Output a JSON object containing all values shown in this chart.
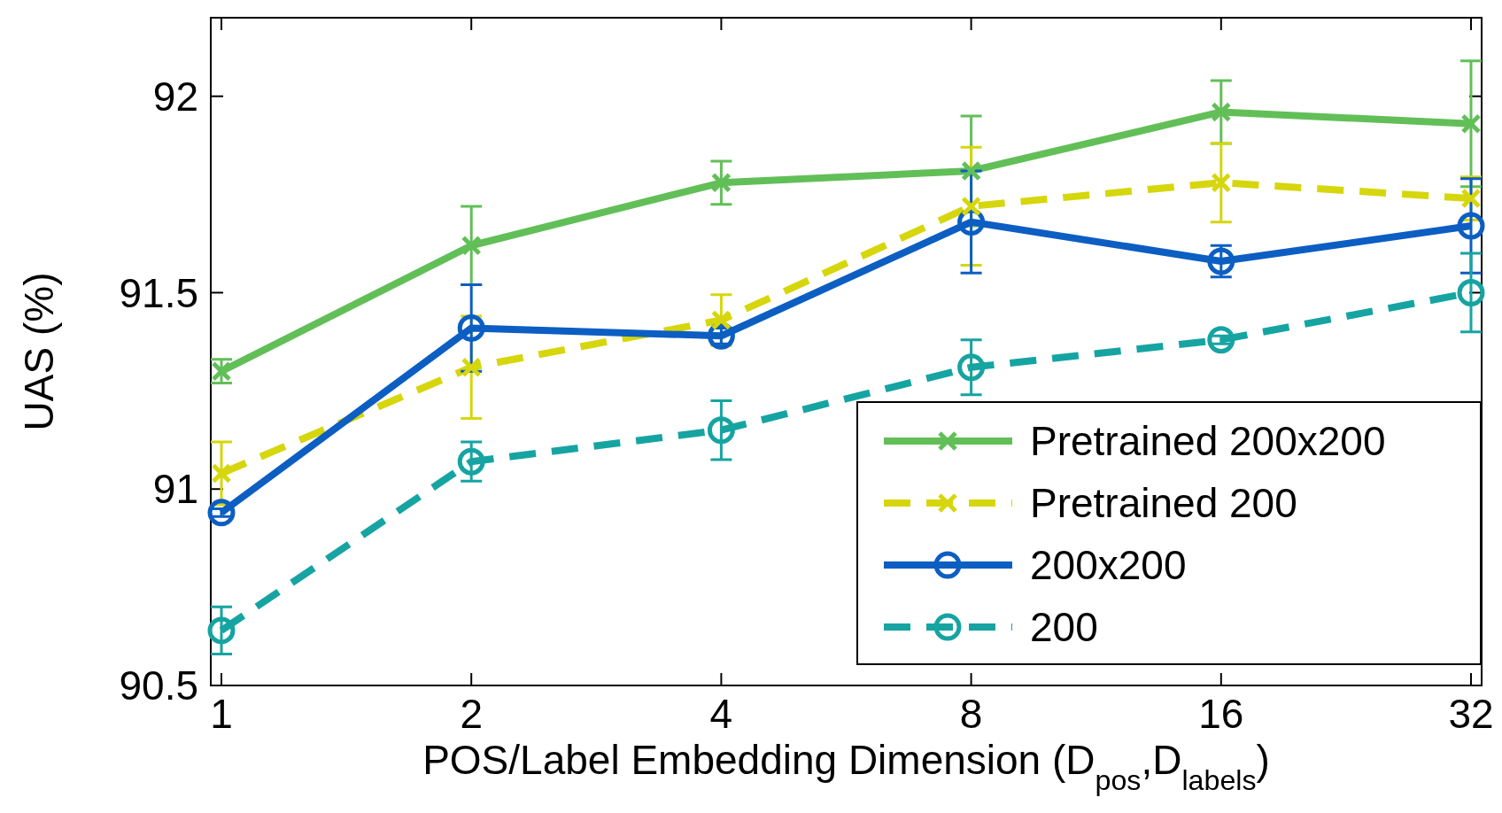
{
  "chart_data": {
    "type": "line",
    "xlabel": "POS/Label Embedding Dimension (D$_{pos}$,D$_{labels}$)",
    "ylabel": "UAS (%)",
    "categories": [
      "1",
      "2",
      "4",
      "8",
      "16",
      "32"
    ],
    "ylim": [
      90.5,
      92.2
    ],
    "yticks": [
      90.5,
      91,
      91.5,
      92
    ],
    "grid": false,
    "legend": "bottom right",
    "series": [
      {
        "name": "Pretrained 200x200",
        "color": "#62bf58",
        "marker": "cross",
        "line_style": "solid",
        "values": [
          91.3,
          91.62,
          91.78,
          91.81,
          91.96,
          91.93
        ],
        "errors": [
          0.03,
          0.1,
          0.055,
          0.14,
          0.08,
          0.16
        ]
      },
      {
        "name": "Pretrained 200",
        "color": "#d6d60c",
        "marker": "cross",
        "line_style": "dashed",
        "values": [
          91.04,
          91.31,
          91.43,
          91.72,
          91.78,
          91.74
        ],
        "errors": [
          0.08,
          0.13,
          0.065,
          0.15,
          0.1,
          0.055
        ]
      },
      {
        "name": "200x200",
        "color": "#0c5ec2",
        "marker": "circle",
        "line_style": "solid",
        "values": [
          90.94,
          91.41,
          91.39,
          91.68,
          91.58,
          91.67
        ],
        "errors": [
          0.01,
          0.11,
          0.02,
          0.13,
          0.04,
          0.12
        ]
      },
      {
        "name": "200",
        "color": "#16a4a2",
        "marker": "circle",
        "line_style": "dashed",
        "values": [
          90.64,
          91.07,
          91.15,
          91.31,
          91.38,
          91.5
        ],
        "errors": [
          0.06,
          0.05,
          0.075,
          0.07,
          0.01,
          0.1
        ]
      }
    ]
  }
}
